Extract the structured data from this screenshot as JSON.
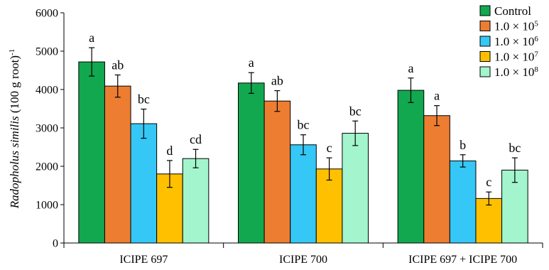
{
  "chart_data": {
    "type": "bar",
    "categories": [
      "ICIPE 697",
      "ICIPE 700",
      "ICIPE 697 + ICIPE 700"
    ],
    "ylabel_italic": "Radopholus similis",
    "ylabel_rest": " (100 g root)",
    "ylabel_sup": "-1",
    "ylim": [
      0,
      6000
    ],
    "yticks": [
      "0",
      "1000",
      "2000",
      "3000",
      "4000",
      "5000",
      "6000"
    ],
    "ytick_values": [
      0,
      1000,
      2000,
      3000,
      4000,
      5000,
      6000
    ],
    "legend_position": "top-right",
    "grid": false,
    "series": [
      {
        "name": "Control",
        "base": "",
        "exp": "",
        "color": "#12a84f",
        "values": [
          4720,
          4170,
          3980
        ],
        "errors": [
          370,
          270,
          320
        ],
        "letters": [
          "a",
          "a",
          "a"
        ]
      },
      {
        "name": "",
        "base": "1.0 × 10",
        "exp": "5",
        "color": "#ed7d31",
        "values": [
          4090,
          3700,
          3320
        ],
        "errors": [
          290,
          270,
          260
        ],
        "letters": [
          "ab",
          "ab",
          "a"
        ]
      },
      {
        "name": "",
        "base": "1.0 × 10",
        "exp": "6",
        "color": "#35c7f5",
        "values": [
          3110,
          2560,
          2140
        ],
        "errors": [
          380,
          260,
          160
        ],
        "letters": [
          "bc",
          "bc",
          "b"
        ]
      },
      {
        "name": "",
        "base": "1.0 × 10",
        "exp": "7",
        "color": "#ffc000",
        "values": [
          1800,
          1930,
          1160
        ],
        "errors": [
          350,
          290,
          170
        ],
        "letters": [
          "d",
          "c",
          "c"
        ]
      },
      {
        "name": "",
        "base": "1.0 × 10",
        "exp": "8",
        "color": "#a2f5cc",
        "values": [
          2200,
          2860,
          1900
        ],
        "errors": [
          240,
          320,
          320
        ],
        "letters": [
          "cd",
          "bc",
          "bc"
        ]
      }
    ]
  }
}
